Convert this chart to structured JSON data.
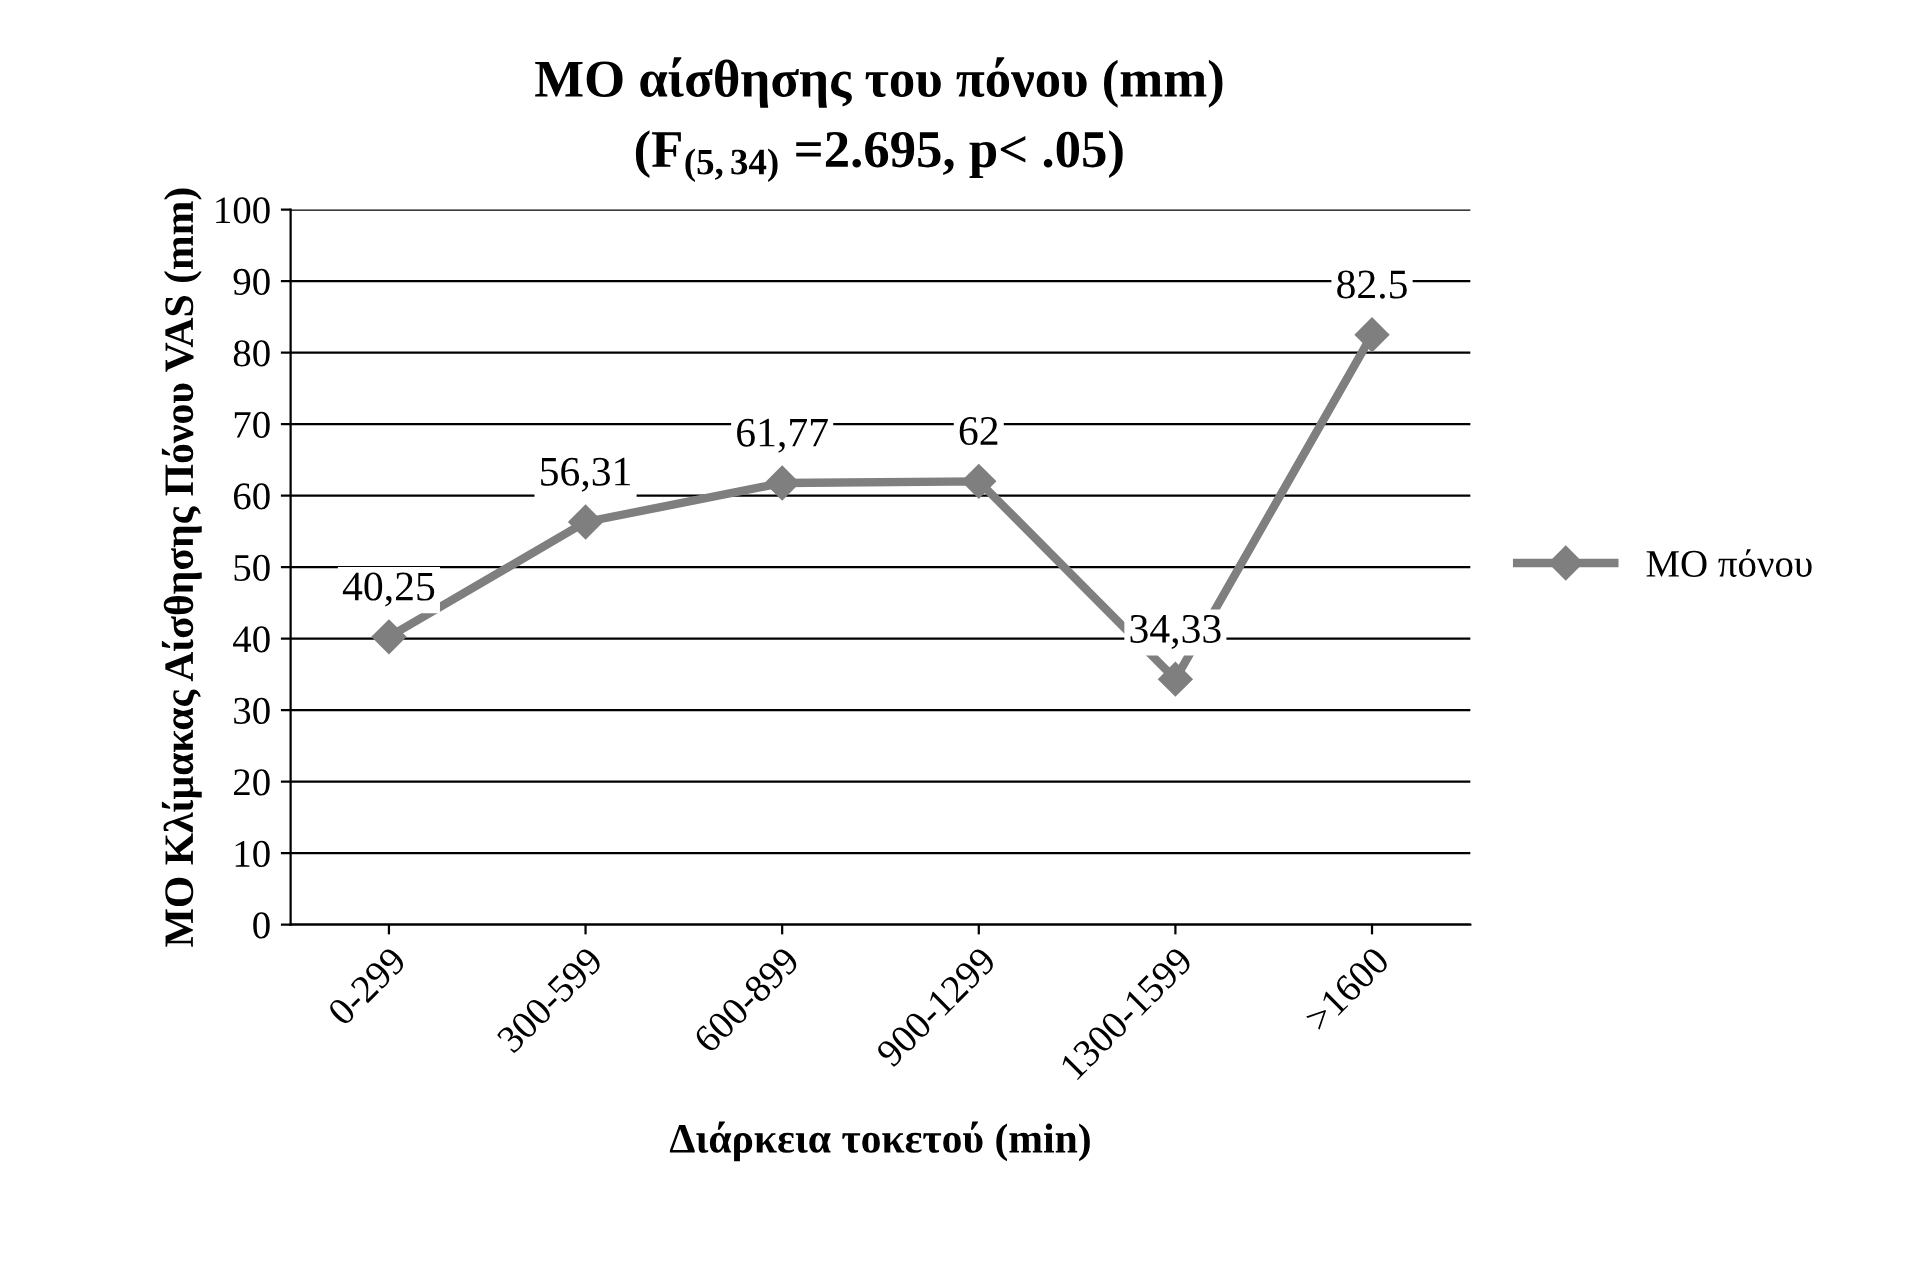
{
  "chart_data": {
    "type": "line",
    "title": "ΜΟ αίσθησης του πόνου (mm)",
    "subtitle": "(F$_{(5,34)}$ =2.695, p< .05)",
    "xlabel": "Διάρκεια τοκετού (min)",
    "ylabel": "ΜΟ Κλίμακας Αίσθησης Πόνου VAS (mm)",
    "categories": [
      "0-299",
      "300-599",
      "600-899",
      "900-1299",
      "1300-1599",
      ">1600"
    ],
    "series": [
      {
        "name": "ΜΟ πόνου",
        "color": "#7f7f7f",
        "values": [
          40.25,
          56.31,
          61.77,
          62,
          34.33,
          82.5
        ],
        "value_labels": [
          "40,25",
          "56,31",
          "61,77",
          "62",
          "34,33",
          "82.5"
        ]
      }
    ],
    "ylim": [
      0,
      100
    ],
    "yticks": [
      0,
      10,
      20,
      30,
      40,
      50,
      60,
      70,
      80,
      90,
      100
    ],
    "grid": "y",
    "legend": "right",
    "marker": "diamond",
    "line_style": "solid"
  }
}
